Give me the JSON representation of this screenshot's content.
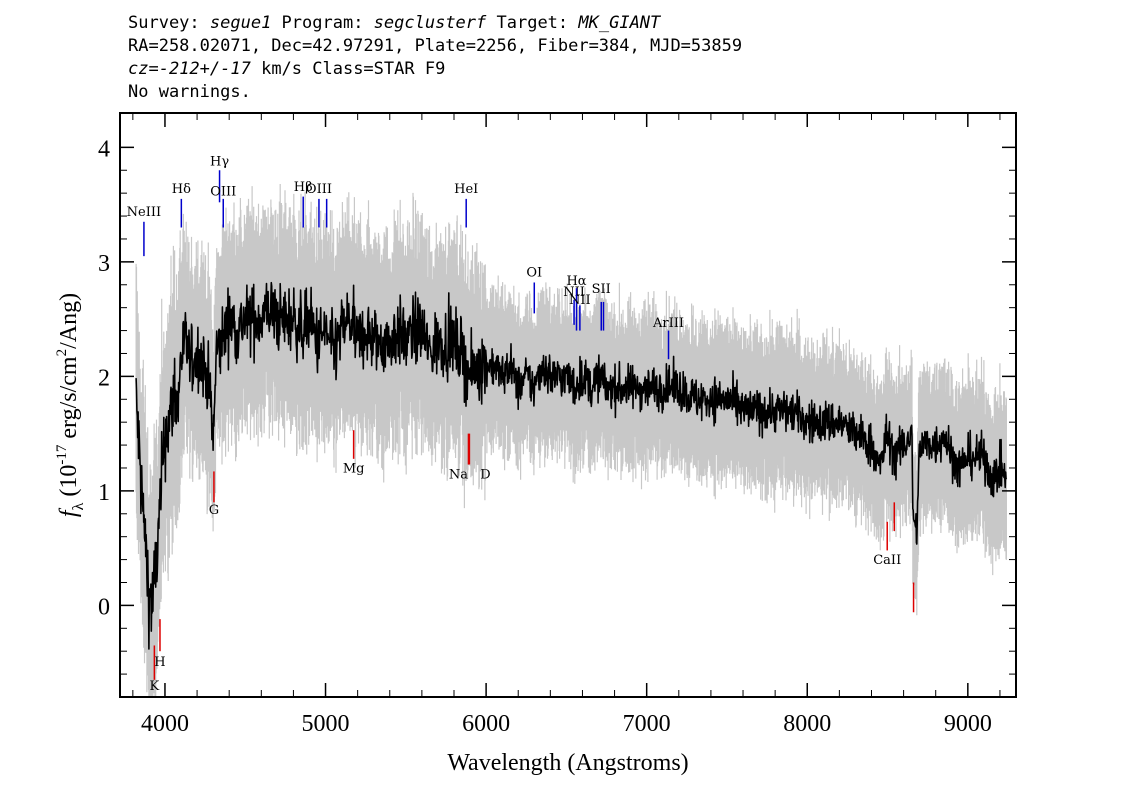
{
  "header": {
    "line1": {
      "survey_label": "Survey: ",
      "survey": "segue1",
      "program_label": " Program: ",
      "program": "segclusterf",
      "target_label": " Target: ",
      "target": "MK_GIANT"
    },
    "line2": "RA=258.02071, Dec=42.97291, Plate=2256, Fiber=384, MJD=53859",
    "line3": {
      "cz_label": "cz=",
      "cz_value": "-212+/-17",
      "cz_rest": " km/s Class=STAR F9"
    },
    "line4": "No warnings."
  },
  "chart_data": {
    "type": "line",
    "xlabel": "Wavelength (Angstroms)",
    "ylabel": "f_λ (10^-17 erg/s/cm^2/Ang)",
    "xlim": [
      3720,
      9300
    ],
    "ylim": [
      -0.8,
      4.3
    ],
    "xticks": [
      4000,
      5000,
      6000,
      7000,
      8000,
      9000
    ],
    "yticks": [
      0,
      1,
      2,
      3,
      4
    ],
    "colors": {
      "flux": "#000000",
      "error_band": "#c8c8c8",
      "emission": "#0000cc",
      "absorption": "#dd0000"
    },
    "series": [
      {
        "role": "flux",
        "x": [
          3820,
          3850,
          3880,
          3900,
          3920,
          3940,
          3960,
          3980,
          4000,
          4030,
          4060,
          4080,
          4100,
          4130,
          4160,
          4200,
          4240,
          4280,
          4300,
          4320,
          4350,
          4400,
          4450,
          4500,
          4550,
          4600,
          4650,
          4700,
          4750,
          4800,
          4850,
          4900,
          4950,
          5000,
          5050,
          5100,
          5150,
          5200,
          5250,
          5300,
          5350,
          5400,
          5450,
          5500,
          5550,
          5600,
          5650,
          5700,
          5750,
          5800,
          5850,
          5900,
          5950,
          6000,
          6050,
          6100,
          6150,
          6200,
          6250,
          6300,
          6350,
          6400,
          6450,
          6500,
          6550,
          6600,
          6650,
          6700,
          6750,
          6800,
          6850,
          6900,
          6950,
          7000,
          7100,
          7200,
          7300,
          7400,
          7500,
          7600,
          7700,
          7800,
          7900,
          8000,
          8100,
          8200,
          8300,
          8400,
          8450,
          8500,
          8550,
          8600,
          8650,
          8660,
          8680,
          8700,
          8750,
          8800,
          8850,
          8900,
          8950,
          9000,
          9050,
          9100,
          9150,
          9200,
          9240
        ],
        "y": [
          1.8,
          1.1,
          0.5,
          0.1,
          0.0,
          0.3,
          0.6,
          1.1,
          1.5,
          1.6,
          1.9,
          1.7,
          2.2,
          2.3,
          2.1,
          2.2,
          2.1,
          1.9,
          1.4,
          2.2,
          2.3,
          2.5,
          2.4,
          2.5,
          2.5,
          2.5,
          2.6,
          2.5,
          2.5,
          2.5,
          2.4,
          2.5,
          2.3,
          2.4,
          2.2,
          2.4,
          2.5,
          2.3,
          2.4,
          2.3,
          2.3,
          2.3,
          2.4,
          2.3,
          2.4,
          2.4,
          2.2,
          2.3,
          2.3,
          2.3,
          2.2,
          2.0,
          2.1,
          2.1,
          2.1,
          2.0,
          2.1,
          1.9,
          2.0,
          1.9,
          2.1,
          2.0,
          2.0,
          2.0,
          1.9,
          2.0,
          1.9,
          2.0,
          1.9,
          1.9,
          1.9,
          1.9,
          1.9,
          1.9,
          1.9,
          1.9,
          1.8,
          1.8,
          1.8,
          1.7,
          1.7,
          1.7,
          1.7,
          1.6,
          1.6,
          1.6,
          1.5,
          1.4,
          1.2,
          1.5,
          1.3,
          1.4,
          1.5,
          0.8,
          0.6,
          1.4,
          1.4,
          1.4,
          1.5,
          1.3,
          1.2,
          1.3,
          1.3,
          1.3,
          1.1,
          1.2,
          1.1
        ]
      }
    ],
    "line_markers": [
      {
        "label": "NeIII",
        "wavelength": 3869,
        "y_from": 3.05,
        "y_to": 3.35,
        "kind": "emission",
        "label_y": 3.4
      },
      {
        "label": "Hδ",
        "wavelength": 4102,
        "y_from": 3.3,
        "y_to": 3.55,
        "kind": "emission",
        "label_y": 3.6
      },
      {
        "label": "Hγ",
        "wavelength": 4340,
        "y_from": 3.52,
        "y_to": 3.8,
        "kind": "emission",
        "label_y": 3.84
      },
      {
        "label": "OIII",
        "wavelength": 4363,
        "y_from": 3.3,
        "y_to": 3.55,
        "kind": "emission",
        "label_y": 3.58
      },
      {
        "label": "Hβ",
        "wavelength": 4861,
        "y_from": 3.3,
        "y_to": 3.57,
        "kind": "emission",
        "label_y": 3.62
      },
      {
        "label": "OIII",
        "wavelength": 4959,
        "y_from": 3.3,
        "y_to": 3.55,
        "kind": "emission",
        "label_y": 3.6
      },
      {
        "label": "",
        "wavelength": 5007,
        "y_from": 3.3,
        "y_to": 3.55,
        "kind": "emission"
      },
      {
        "label": "HeI",
        "wavelength": 5876,
        "y_from": 3.3,
        "y_to": 3.55,
        "kind": "emission",
        "label_y": 3.6
      },
      {
        "label": "OI",
        "wavelength": 6300,
        "y_from": 2.55,
        "y_to": 2.82,
        "kind": "emission",
        "label_y": 2.87
      },
      {
        "label": "NII",
        "wavelength": 6548,
        "y_from": 2.45,
        "y_to": 2.67,
        "kind": "emission",
        "label_y": 2.7
      },
      {
        "label": "Hα",
        "wavelength": 6563,
        "y_from": 2.4,
        "y_to": 2.77,
        "kind": "emission",
        "label_y": 2.8
      },
      {
        "label": "NII",
        "wavelength": 6584,
        "y_from": 2.4,
        "y_to": 2.62,
        "kind": "emission",
        "label_y": 2.63
      },
      {
        "label": "SII",
        "wavelength": 6717,
        "y_from": 2.4,
        "y_to": 2.65,
        "kind": "emission",
        "label_y": 2.73
      },
      {
        "label": "",
        "wavelength": 6731,
        "y_from": 2.4,
        "y_to": 2.65,
        "kind": "emission"
      },
      {
        "label": "ArIII",
        "wavelength": 7136,
        "y_from": 2.15,
        "y_to": 2.4,
        "kind": "emission",
        "label_y": 2.43
      },
      {
        "label": "K",
        "wavelength": 3934,
        "y_from": -0.65,
        "y_to": -0.35,
        "kind": "absorption",
        "label_y": -0.74
      },
      {
        "label": "H",
        "wavelength": 3969,
        "y_from": -0.4,
        "y_to": -0.12,
        "kind": "absorption",
        "label_y": -0.53
      },
      {
        "label": "G",
        "wavelength": 4305,
        "y_from": 0.9,
        "y_to": 1.17,
        "kind": "absorption",
        "label_y": 0.8
      },
      {
        "label": "Mg",
        "wavelength": 5175,
        "y_from": 1.28,
        "y_to": 1.53,
        "kind": "absorption",
        "label_y": 1.16
      },
      {
        "label": "Na",
        "wavelength": 5890,
        "y_from": 1.23,
        "y_to": 1.5,
        "kind": "absorption",
        "label_y": 1.11,
        "label_dx": -10
      },
      {
        "label": "D",
        "wavelength": 5896,
        "y_from": 1.23,
        "y_to": 1.5,
        "kind": "absorption",
        "label_y": 1.11,
        "label_dx": 16
      },
      {
        "label": "CaII",
        "wavelength": 8498,
        "y_from": 0.48,
        "y_to": 0.73,
        "kind": "absorption",
        "label_y": 0.36
      },
      {
        "label": "",
        "wavelength": 8542,
        "y_from": 0.65,
        "y_to": 0.9,
        "kind": "absorption"
      },
      {
        "label": "",
        "wavelength": 8662,
        "y_from": -0.06,
        "y_to": 0.2,
        "kind": "absorption"
      }
    ]
  }
}
